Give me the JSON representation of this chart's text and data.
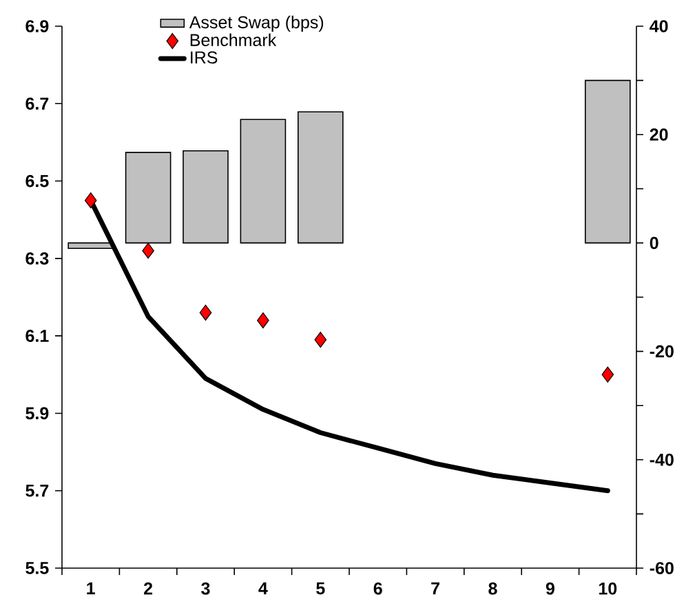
{
  "chart_data": {
    "type": "bar",
    "categories": [
      "1",
      "2",
      "3",
      "4",
      "5",
      "6",
      "7",
      "8",
      "9",
      "10"
    ],
    "series": [
      {
        "name": "Asset Swap (bps)",
        "axis": "y2",
        "color": "#c0c0c0",
        "values": [
          -1,
          16.7,
          17,
          22.8,
          24.2,
          null,
          null,
          null,
          null,
          30
        ]
      },
      {
        "name": "Benchmark",
        "type": "scatter",
        "marker": "diamond",
        "color": "#ff0000",
        "values": [
          6.45,
          6.32,
          6.16,
          6.14,
          6.09,
          null,
          null,
          null,
          null,
          6.0
        ]
      },
      {
        "name": "IRS",
        "type": "line",
        "marker": "none",
        "line_style": "solid",
        "color": "#000000",
        "values": [
          6.45,
          6.15,
          5.99,
          5.91,
          5.85,
          5.81,
          5.77,
          5.74,
          5.72,
          5.7
        ]
      }
    ],
    "ylim": [
      5.5,
      6.9
    ],
    "yticks": [
      5.5,
      5.7,
      5.9,
      6.1,
      6.3,
      6.5,
      6.7,
      6.9
    ],
    "y2lim": [
      -60,
      40
    ],
    "y2ticks": [
      -60,
      {
        "value": -50,
        "label": null
      },
      -40,
      {
        "value": -30,
        "label": null
      },
      -20,
      {
        "value": -10,
        "label": null
      },
      0,
      {
        "value": 10,
        "label": null
      },
      20,
      {
        "value": 30,
        "label": null
      },
      40
    ],
    "legend": "top",
    "grid": false
  }
}
